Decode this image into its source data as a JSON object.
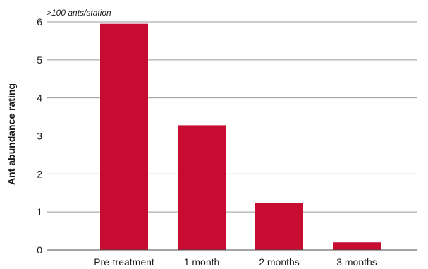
{
  "chart_data": {
    "type": "bar",
    "title": "",
    "xlabel": "",
    "ylabel": "Ant abundance rating",
    "annotation": ">100 ants/station",
    "categories": [
      "Pre-treatment",
      "1 month",
      "2 months",
      "3 months"
    ],
    "values": [
      5.95,
      3.28,
      1.23,
      0.2
    ],
    "ylim": [
      0,
      6
    ],
    "yticks": [
      "0",
      "1",
      "2",
      "3",
      "4",
      "5",
      "6"
    ],
    "grid": true,
    "legend": "none",
    "bar_color": "#c60c30",
    "grid_color": "#9a9a9a"
  }
}
